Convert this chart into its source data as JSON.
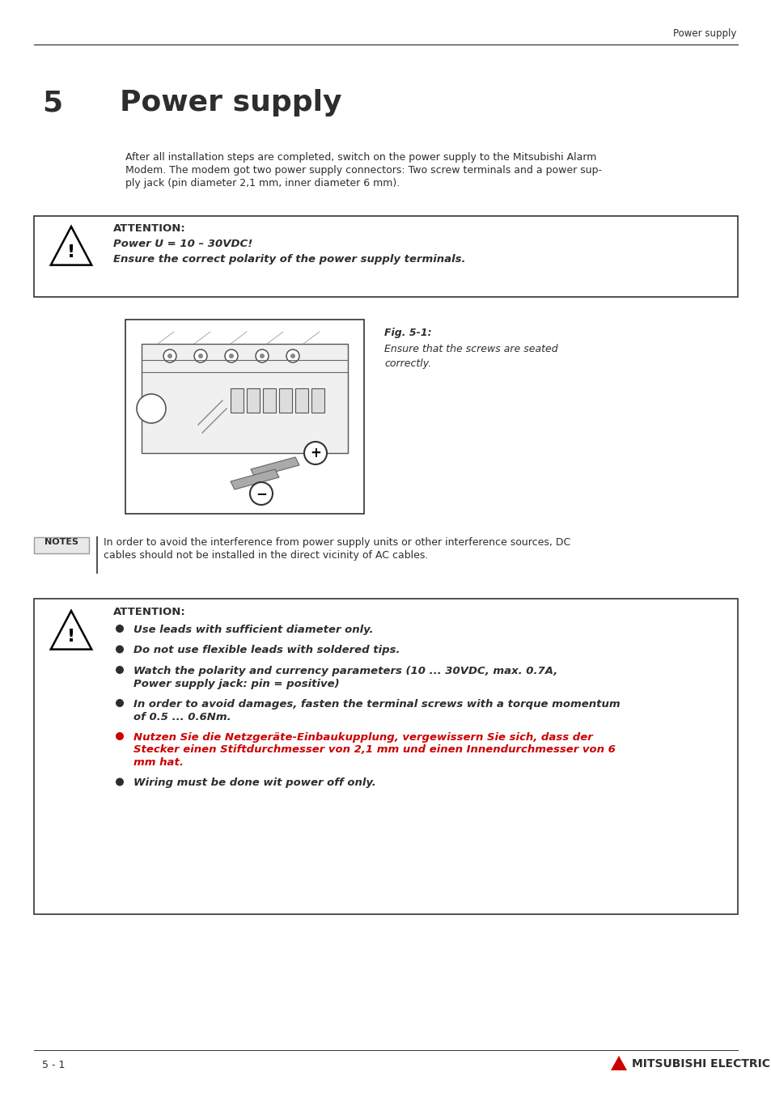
{
  "page_title": "Power supply",
  "chapter_num": "5",
  "chapter_title": "Power supply",
  "body_text_lines": [
    "After all installation steps are completed, switch on the power supply to the Mitsubishi Alarm",
    "Modem. The modem got two power supply connectors: Two screw terminals and a power sup-",
    "ply jack (pin diameter 2,1 mm, inner diameter 6 mm)."
  ],
  "attention1_title": "ATTENTION:",
  "attention1_line1": "Power U = 10 – 30VDC!",
  "attention1_line2": "Ensure the correct polarity of the power supply terminals.",
  "fig_caption_title": "Fig. 5-1:",
  "fig_caption_line1": "Ensure that the screws are seated",
  "fig_caption_line2": "correctly.",
  "notes_label": "NOTES",
  "notes_line1": "In order to avoid the interference from power supply units or other interference sources, DC",
  "notes_line2": "cables should not be installed in the direct vicinity of AC cables.",
  "attention2_title": "ATTENTION:",
  "attention2_bullets": [
    "Use leads with sufficient diameter only.",
    "Do not use flexible leads with soldered tips.",
    "Watch the polarity and currency parameters (10 ... 30VDC, max. 0.7A,\nPower supply jack: pin = positive)",
    "In order to avoid damages, fasten the terminal screws with a torque momentum\nof 0.5 ... 0.6Nm.",
    "Nutzen Sie die Netzgeräte-Einbaukupplung, vergewissern Sie sich, dass der\nStecker einen Stiftdurchmesser von 2,1 mm und einen Innendurchmesser von 6\nmm hat.",
    "Wiring must be done wit power off only."
  ],
  "footer_left": "5 - 1",
  "footer_right": "MITSUBISHI ELECTRIC",
  "bg_color": "#ffffff",
  "text_color": "#2d2d2d",
  "border_color": "#444444",
  "header_line_color": "#222222",
  "red_color": "#cc0000"
}
